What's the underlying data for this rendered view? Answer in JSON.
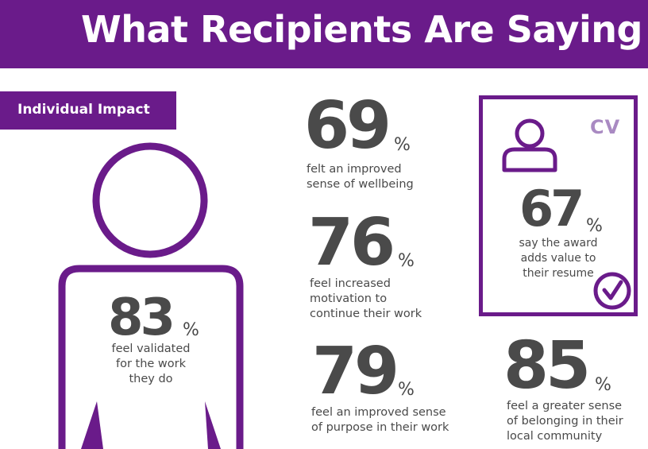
{
  "header": {
    "title": "What Recipients Are Saying"
  },
  "section": {
    "tag": "Individual Impact"
  },
  "stats": {
    "s83": {
      "value": "83",
      "unit": "%",
      "line1": "feel validated",
      "line2": "for the work",
      "line3": "they do"
    },
    "s69": {
      "value": "69",
      "unit": "%",
      "line1": "felt an improved",
      "line2": "sense of wellbeing"
    },
    "s76": {
      "value": "76",
      "unit": "%",
      "line1": "feel increased",
      "line2": "motivation to",
      "line3": "continue their work"
    },
    "s79": {
      "value": "79",
      "unit": "%",
      "line1": "feel an improved sense",
      "line2": "of purpose in their work"
    },
    "s67": {
      "value": "67",
      "unit": "%",
      "line1": "say the award",
      "line2": "adds value to",
      "line3": "their resume"
    },
    "s85": {
      "value": "85",
      "unit": "%",
      "line1": "feel a greater sense",
      "line2": "of belonging in their",
      "line3": "local community"
    }
  },
  "cv": {
    "label": "CV"
  },
  "icons": [
    "person-silhouette-icon",
    "user-icon",
    "checkmark-circle-icon"
  ],
  "colors": {
    "brand_purple": "#6a1b8a",
    "cv_lavender": "#a98ac2",
    "text_gray": "#4a4a4a"
  }
}
